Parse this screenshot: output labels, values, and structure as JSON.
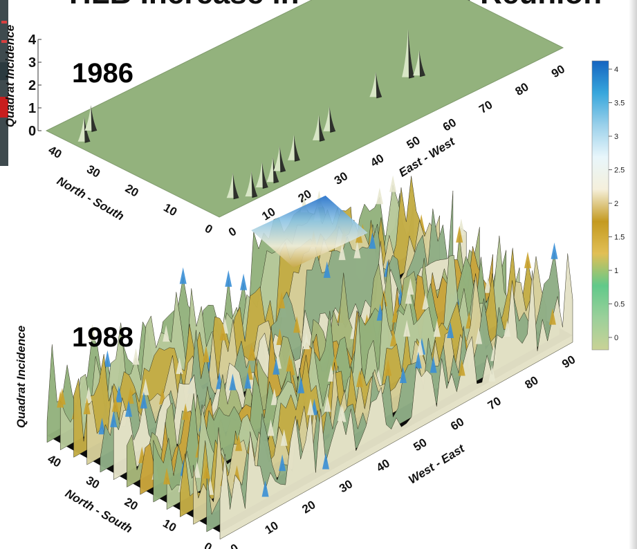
{
  "title": "HLB Increase in Orchard on Reunion",
  "colorbar": {
    "ticks": [
      "4",
      "3.5",
      "3",
      "2.5",
      "2",
      "1.5",
      "1",
      "0.5",
      "0"
    ],
    "stops": [
      "#c9d296",
      "#9bd09a",
      "#61c98a",
      "#e1bf55",
      "#c49a20",
      "#f5f0dc",
      "#e8f6fb",
      "#9ad0ea",
      "#37a6dc",
      "#1564c0"
    ]
  },
  "chart_data": [
    {
      "type": "surface3d",
      "year_label": "1986",
      "zlabel": "Quadrat Incidence",
      "xlabel": "East - West",
      "ylabel": "North - South",
      "z_ticks": [
        "0",
        "1",
        "2",
        "3",
        "4"
      ],
      "x_ticks": [
        "0",
        "10",
        "20",
        "30",
        "40",
        "50",
        "60",
        "70",
        "80",
        "90"
      ],
      "y_ticks": [
        "0",
        "10",
        "20",
        "30",
        "40"
      ],
      "x_range": [
        0,
        95
      ],
      "y_range": [
        0,
        45
      ],
      "z_range": [
        0,
        4
      ],
      "surface_color": "#93b27d",
      "peaks": [
        {
          "x": 3,
          "y": 38,
          "z": 1.0
        },
        {
          "x": 7,
          "y": 40,
          "z": 1.0
        },
        {
          "x": 8,
          "y": 4,
          "z": 1.0
        },
        {
          "x": 11,
          "y": 2,
          "z": 1.0
        },
        {
          "x": 15,
          "y": 3,
          "z": 1.0
        },
        {
          "x": 18,
          "y": 3,
          "z": 1.0
        },
        {
          "x": 22,
          "y": 5,
          "z": 1.0
        },
        {
          "x": 27,
          "y": 6,
          "z": 1.0
        },
        {
          "x": 36,
          "y": 8,
          "z": 1.0
        },
        {
          "x": 40,
          "y": 9,
          "z": 1.0
        },
        {
          "x": 56,
          "y": 12,
          "z": 1.0
        },
        {
          "x": 66,
          "y": 13,
          "z": 2.0
        },
        {
          "x": 68,
          "y": 12,
          "z": 1.0
        }
      ]
    },
    {
      "type": "surface3d",
      "year_label": "1988",
      "zlabel": "Quadrat Incidence",
      "xlabel": "West - East",
      "ylabel": "North - South",
      "z_ticks": [
        "0",
        "1",
        "2",
        "3",
        "4"
      ],
      "x_ticks": [
        "0",
        "10",
        "20",
        "30",
        "40",
        "50",
        "60",
        "70",
        "80",
        "90"
      ],
      "y_ticks": [
        "0",
        "10",
        "20",
        "30",
        "40"
      ],
      "x_range": [
        0,
        95
      ],
      "y_range": [
        0,
        45
      ],
      "z_range": [
        0,
        4
      ],
      "note_mean_level": 1.3,
      "high_region": {
        "x": [
          55,
          75
        ],
        "y": [
          30,
          45
        ],
        "z": 4.0
      }
    }
  ]
}
